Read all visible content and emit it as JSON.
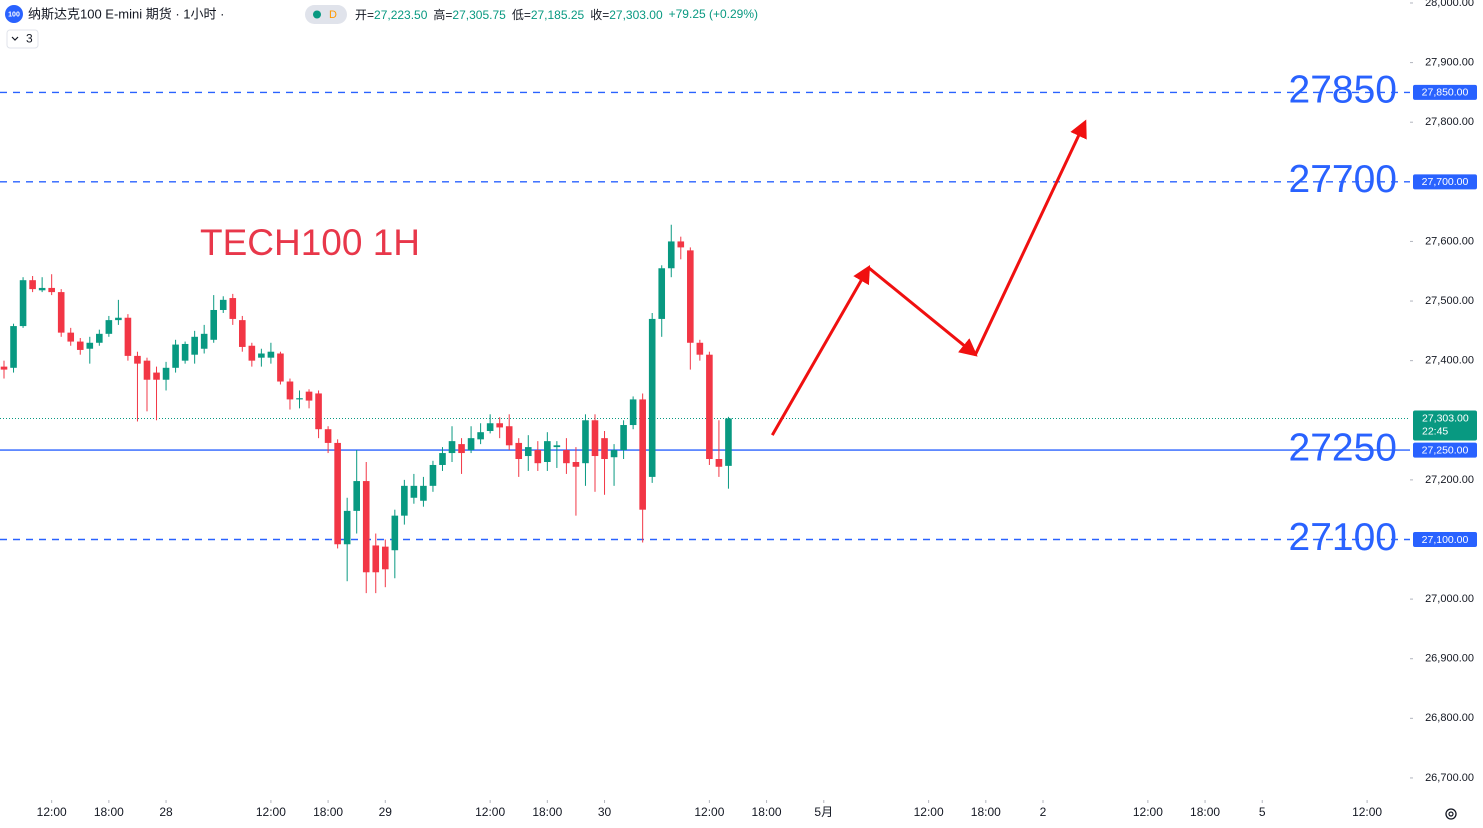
{
  "chart_data": {
    "type": "candlestick",
    "header": {
      "logo": "100",
      "title": "纳斯达克100 E-mini 期货 · 1小时 ·",
      "badge": "D",
      "stats": [
        {
          "label": "开=",
          "value": "27,223.50"
        },
        {
          "label": "高=",
          "value": "27,305.75"
        },
        {
          "label": "低=",
          "value": "27,185.25"
        },
        {
          "label": "收=",
          "value": "27,303.00"
        },
        {
          "label": "",
          "value": "+79.25 (+0.29%)"
        }
      ],
      "indicator_count": "3"
    },
    "annotation": "TECH100 1H",
    "up_color": "#089981",
    "down_color": "#f23645",
    "open": [
      27390,
      27388,
      27458,
      27535,
      27518,
      27522,
      27515,
      27447,
      27432,
      27420,
      27430,
      27445,
      27468,
      27472,
      27408,
      27400,
      27380,
      27368,
      27388,
      27400,
      27410,
      27420,
      27435,
      27485,
      27505,
      27468,
      27425,
      27405,
      27405,
      27412,
      27365,
      27335,
      27348,
      27345,
      27285,
      27262,
      27092,
      27148,
      27198,
      27090,
      27088,
      27082,
      27140,
      27170,
      27165,
      27190,
      27225,
      27245,
      27260,
      27250,
      27268,
      27282,
      27295,
      27290,
      27262,
      27240,
      27250,
      27230,
      27255,
      27250,
      27230,
      27228,
      27300,
      27270,
      27238,
      27250,
      27292,
      27335,
      27205,
      27470,
      27555,
      27600,
      27585,
      27430,
      27410,
      27235,
      27223.5
    ],
    "high": [
      27400,
      27462,
      27540,
      27542,
      27540,
      27545,
      27520,
      27455,
      27438,
      27440,
      27452,
      27475,
      27502,
      27478,
      27415,
      27405,
      27390,
      27398,
      27435,
      27432,
      27450,
      27460,
      27510,
      27508,
      27512,
      27475,
      27430,
      27420,
      27430,
      27415,
      27370,
      27350,
      27352,
      27350,
      27290,
      27268,
      27170,
      27250,
      27230,
      27110,
      27100,
      27150,
      27200,
      27210,
      27205,
      27232,
      27255,
      27290,
      27270,
      27290,
      27295,
      27310,
      27305,
      27310,
      27270,
      27275,
      27265,
      27280,
      27265,
      27270,
      27255,
      27310,
      27310,
      27282,
      27260,
      27300,
      27340,
      27345,
      27480,
      27560,
      27628,
      27608,
      27590,
      27435,
      27415,
      27300,
      27305.75
    ],
    "low": [
      27370,
      27380,
      27455,
      27515,
      27515,
      27510,
      27440,
      27425,
      27410,
      27395,
      27425,
      27440,
      27460,
      27400,
      27298,
      27315,
      27300,
      27350,
      27380,
      27395,
      27395,
      27412,
      27430,
      27480,
      27460,
      27415,
      27390,
      27390,
      27395,
      27360,
      27318,
      27320,
      27320,
      27270,
      27245,
      27085,
      27030,
      27110,
      27010,
      27010,
      27020,
      27035,
      27125,
      27160,
      27155,
      27180,
      27215,
      27230,
      27210,
      27245,
      27260,
      27278,
      27270,
      27250,
      27205,
      27215,
      27215,
      27215,
      27220,
      27210,
      27140,
      27190,
      27180,
      27175,
      27190,
      27235,
      27285,
      27095,
      27195,
      27440,
      27540,
      27570,
      27385,
      27400,
      27225,
      27205,
      27185.25
    ],
    "close": [
      27385,
      27458,
      27535,
      27520,
      27522,
      27515,
      27447,
      27432,
      27418,
      27430,
      27445,
      27468,
      27472,
      27408,
      27395,
      27368,
      27368,
      27388,
      27427,
      27428,
      27440,
      27445,
      27485,
      27502,
      27470,
      27423,
      27400,
      27412,
      27415,
      27365,
      27335,
      27337,
      27333,
      27285,
      27262,
      27092,
      27148,
      27198,
      27045,
      27045,
      27050,
      27140,
      27190,
      27190,
      27190,
      27225,
      27245,
      27265,
      27245,
      27270,
      27280,
      27295,
      27288,
      27258,
      27235,
      27255,
      27228,
      27265,
      27258,
      27228,
      27222,
      27300,
      27240,
      27235,
      27250,
      27292,
      27335,
      27150,
      27470,
      27555,
      27600,
      27590,
      27430,
      27410,
      27235,
      27222,
      27303
    ],
    "xlim": [
      -0.42,
      147.5
    ],
    "xticks": [
      {
        "value": 5,
        "label": "12:00"
      },
      {
        "value": 11,
        "label": "18:00"
      },
      {
        "value": 17,
        "label": "28"
      },
      {
        "value": 28,
        "label": "12:00"
      },
      {
        "value": 34,
        "label": "18:00"
      },
      {
        "value": 40,
        "label": "29"
      },
      {
        "value": 51,
        "label": "12:00"
      },
      {
        "value": 57,
        "label": "18:00"
      },
      {
        "value": 63,
        "label": "30"
      },
      {
        "value": 74,
        "label": "12:00"
      },
      {
        "value": 80,
        "label": "18:00"
      },
      {
        "value": 86,
        "label": "5月"
      },
      {
        "value": 97,
        "label": "12:00"
      },
      {
        "value": 103,
        "label": "18:00"
      },
      {
        "value": 109,
        "label": "2"
      },
      {
        "value": 120,
        "label": "12:00"
      },
      {
        "value": 126,
        "label": "18:00"
      },
      {
        "value": 132,
        "label": "5"
      },
      {
        "value": 143,
        "label": "12:00"
      }
    ],
    "ylim": [
      26663,
      28005
    ],
    "yticks": [
      {
        "value": 28000,
        "label": "28,000.00"
      },
      {
        "value": 27900,
        "label": "27,900.00"
      },
      {
        "value": 27800,
        "label": "27,800.00"
      },
      {
        "value": 27600,
        "label": "27,600.00"
      },
      {
        "value": 27500,
        "label": "27,500.00"
      },
      {
        "value": 27400,
        "label": "27,400.00"
      },
      {
        "value": 27200,
        "label": "27,200.00"
      },
      {
        "value": 27000,
        "label": "27,000.00"
      },
      {
        "value": 26900,
        "label": "26,900.00"
      },
      {
        "value": 26800,
        "label": "26,800.00"
      },
      {
        "value": 26700,
        "label": "26,700.00"
      }
    ],
    "levels": [
      {
        "value": 27850,
        "label": "27850",
        "axis_label": "27,850.00",
        "style": "dashed"
      },
      {
        "value": 27700,
        "label": "27700",
        "axis_label": "27,700.00",
        "style": "dashed"
      },
      {
        "value": 27250,
        "label": "27250",
        "axis_label": "27,250.00",
        "style": "solid"
      },
      {
        "value": 27100,
        "label": "27100",
        "axis_label": "27,100.00",
        "style": "dashed"
      }
    ],
    "level_color": "#2962ff",
    "last_price": {
      "value": 27303,
      "label": "27,303.00",
      "countdown": "22:45"
    },
    "projection": {
      "x": [
        80.6,
        90.7,
        101.9,
        113.4
      ],
      "y": [
        27275,
        27556,
        27410,
        27800
      ],
      "color": "#f01010"
    }
  }
}
